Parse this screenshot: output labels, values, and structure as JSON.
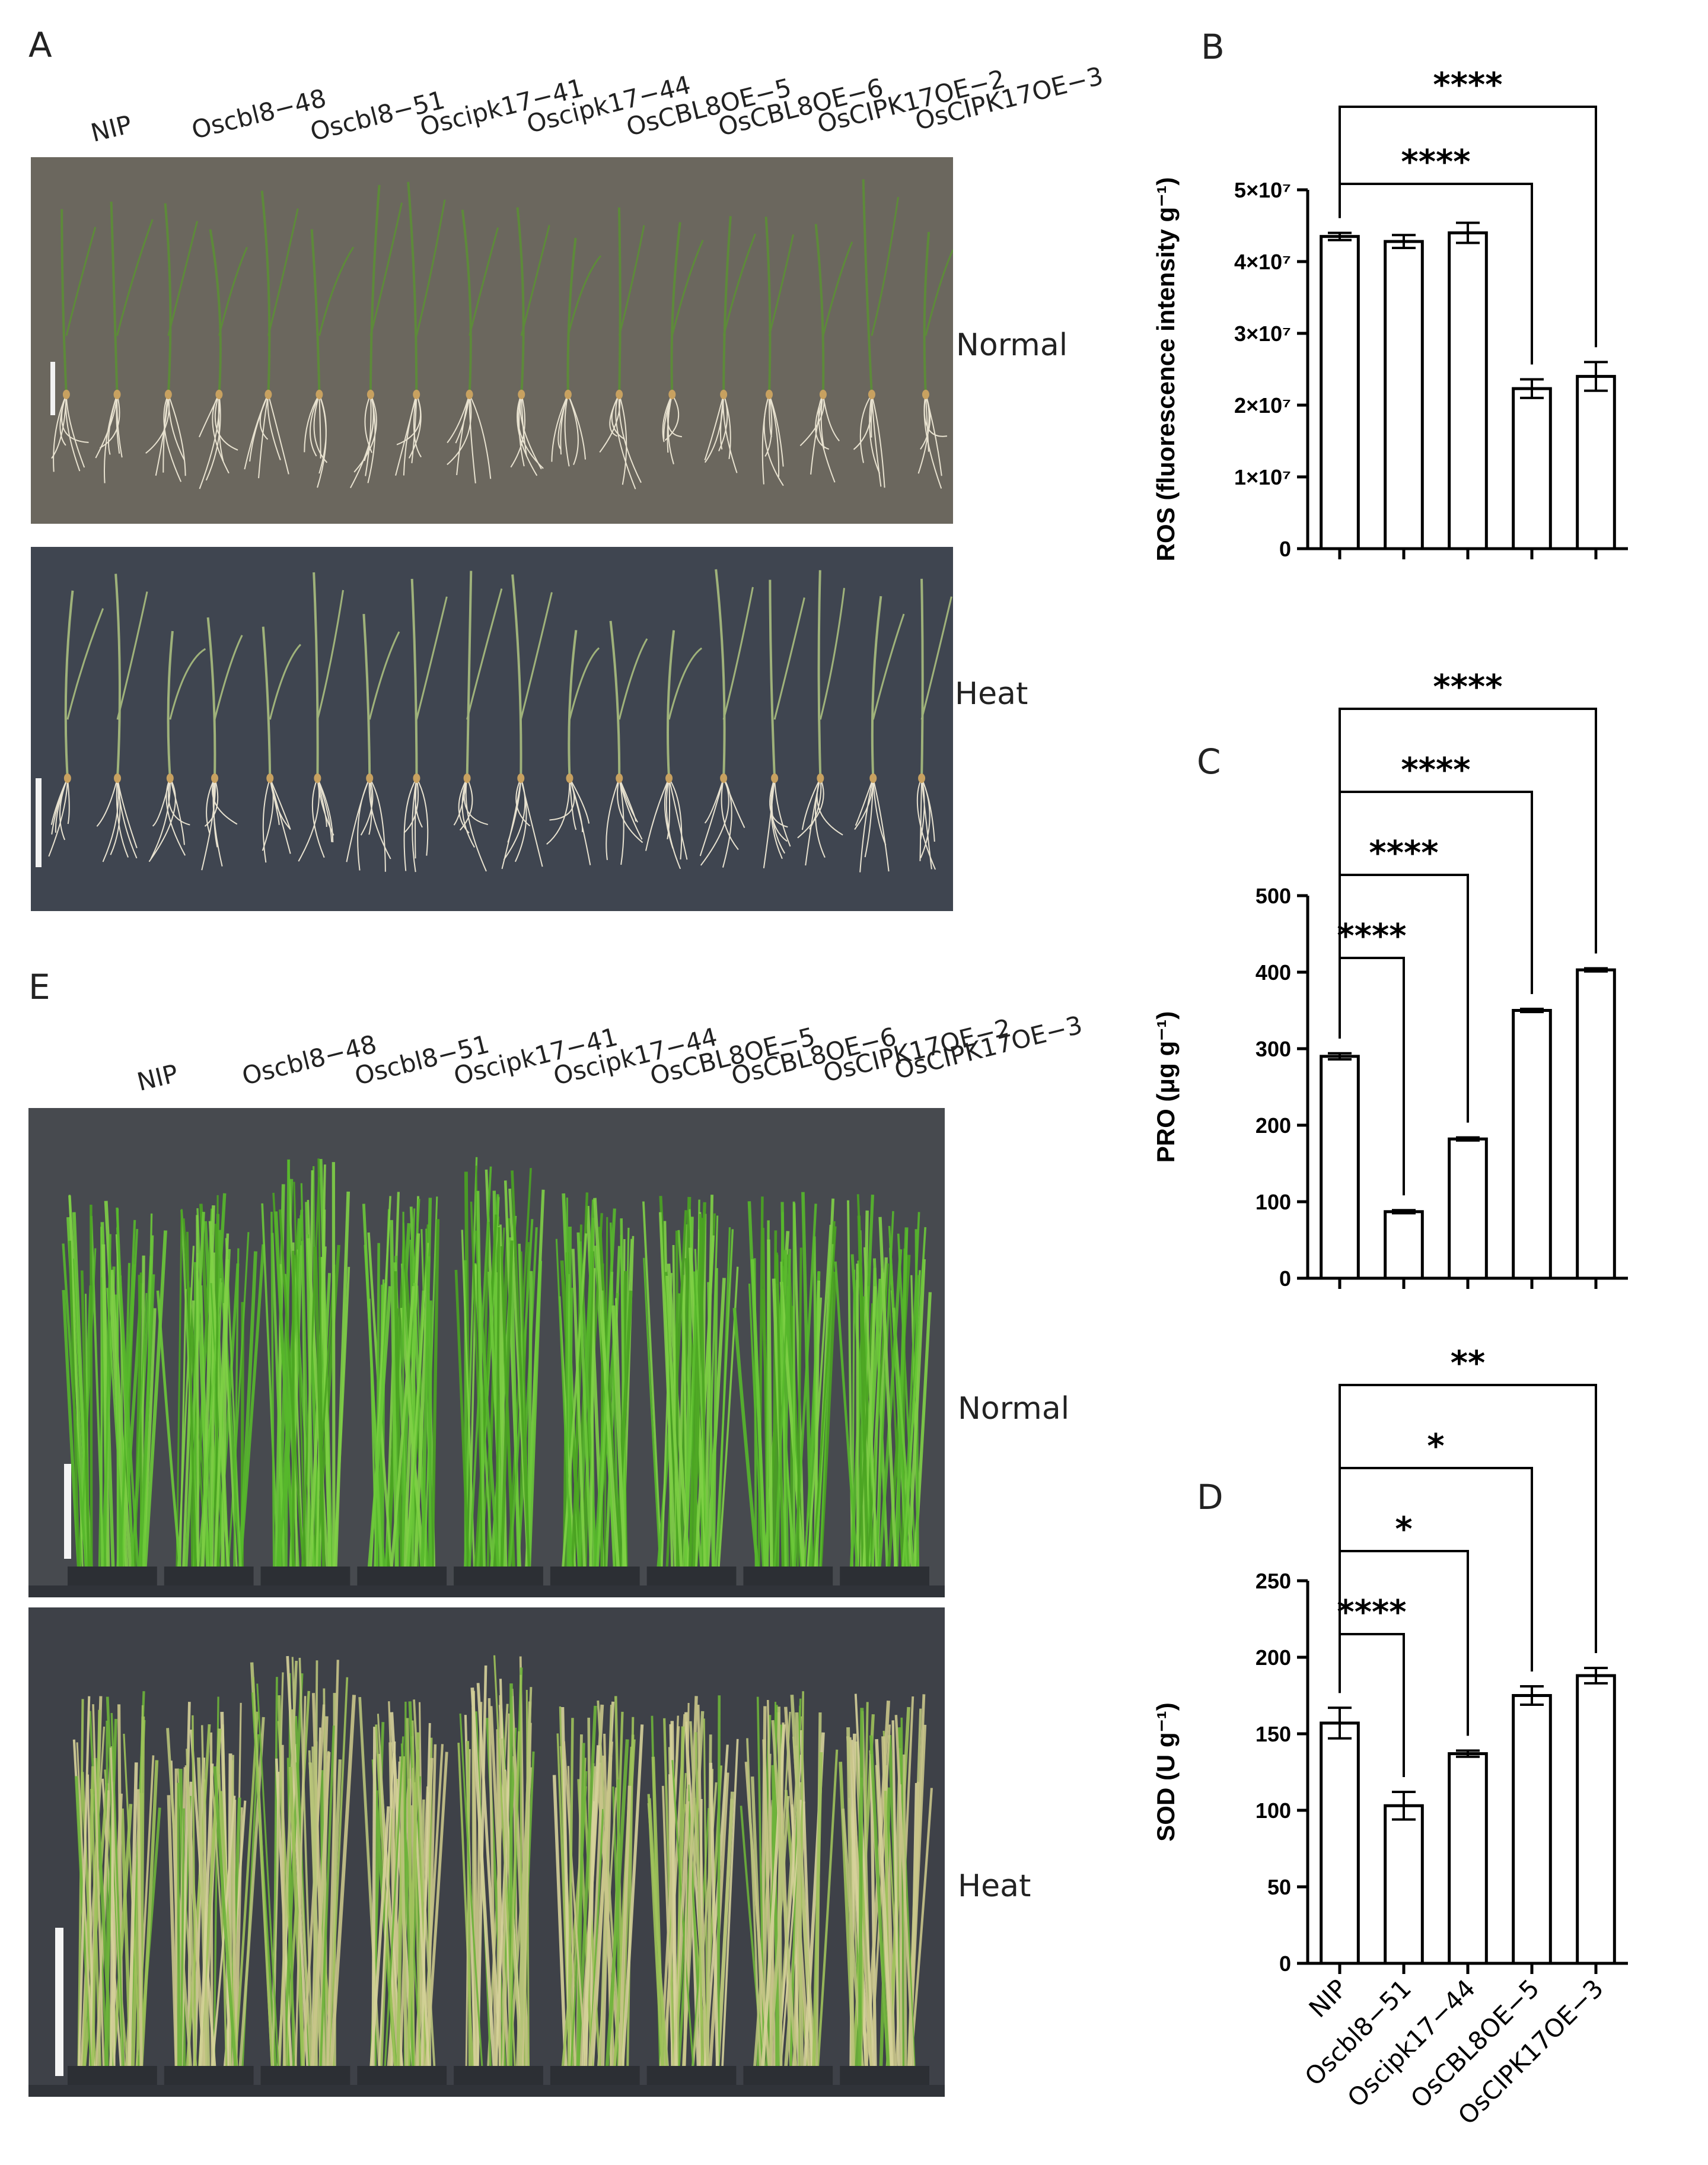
{
  "panels": {
    "A": "A",
    "B": "B",
    "C": "C",
    "D": "D",
    "E": "E"
  },
  "panel_A": {
    "genotypes": [
      "NIP",
      "Oscbl8−48",
      "Oscbl8−51",
      "Oscipk17−41",
      "Oscipk17−44",
      "OsCBL8OE−5",
      "OsCBL8OE−6",
      "OsCIPK17OE−2",
      "OsCIPK17OE−3"
    ],
    "conditions": [
      "Normal",
      "Heat"
    ]
  },
  "panel_E": {
    "genotypes": [
      "NIP",
      "Oscbl8−48",
      "Oscbl8−51",
      "Oscipk17−41",
      "Oscipk17−44",
      "OsCBL8OE−5",
      "OsCBL8OE−6",
      "OsCIPK17OE−2",
      "OsCIPK17OE−3"
    ],
    "conditions": [
      "Normal",
      "Heat"
    ]
  },
  "colors": {
    "photo_bg_normal": "#6b675e",
    "photo_bg_heat": "#3f4550",
    "seedling": "#5d8a3a",
    "rice_green": "#57b82b",
    "rice_yellow": "#c9c58a",
    "bar_fill": "#ffffff",
    "bar_stroke": "#000000"
  },
  "chart_data": [
    {
      "panel": "B",
      "type": "bar",
      "categories": [
        "NIP",
        "Oscbl8−51",
        "Oscipk17−44",
        "OsCBL8OE−5",
        "OsCIPK17OE−3"
      ],
      "values": [
        43500000,
        42800000,
        44000000,
        22300000,
        24000000
      ],
      "errors": [
        500000,
        900000,
        1400000,
        1300000,
        2000000
      ],
      "ylabel": "ROS (fluorescence intensity g⁻¹)",
      "ylim": [
        0,
        50000000
      ],
      "yticks": [
        "0",
        "1×10⁷",
        "2×10⁷",
        "3×10⁷",
        "4×10⁷",
        "5×10⁷"
      ],
      "tick_values": [
        0,
        10000000,
        20000000,
        30000000,
        40000000,
        50000000
      ],
      "significance": [
        {
          "from": 0,
          "to": 3,
          "label": "****"
        },
        {
          "from": 0,
          "to": 4,
          "label": "****"
        }
      ]
    },
    {
      "panel": "C",
      "type": "bar",
      "categories": [
        "NIP",
        "Oscbl8−51",
        "Oscipk17−44",
        "OsCBL8OE−5",
        "OsCIPK17OE−3"
      ],
      "values": [
        290,
        87,
        182,
        350,
        403
      ],
      "errors": [
        4,
        2,
        2,
        2,
        2
      ],
      "ylabel": "PRO (μg g⁻¹)",
      "ylim": [
        0,
        500
      ],
      "yticks": [
        "0",
        "100",
        "200",
        "300",
        "400",
        "500"
      ],
      "tick_values": [
        0,
        100,
        200,
        300,
        400,
        500
      ],
      "significance": [
        {
          "from": 0,
          "to": 1,
          "label": "****"
        },
        {
          "from": 0,
          "to": 2,
          "label": "****"
        },
        {
          "from": 0,
          "to": 3,
          "label": "****"
        },
        {
          "from": 0,
          "to": 4,
          "label": "****"
        }
      ]
    },
    {
      "panel": "D",
      "type": "bar",
      "categories": [
        "NIP",
        "Oscbl8−51",
        "Oscipk17−44",
        "OsCBL8OE−5",
        "OsCIPK17OE−3"
      ],
      "values": [
        157,
        103,
        137,
        175,
        188
      ],
      "errors": [
        10,
        9,
        2,
        6,
        5
      ],
      "ylabel": "SOD (U g⁻¹)",
      "ylim": [
        0,
        250
      ],
      "yticks": [
        "0",
        "50",
        "100",
        "150",
        "200",
        "250"
      ],
      "tick_values": [
        0,
        50,
        100,
        150,
        200,
        250
      ],
      "significance": [
        {
          "from": 0,
          "to": 1,
          "label": "****"
        },
        {
          "from": 0,
          "to": 2,
          "label": "*"
        },
        {
          "from": 0,
          "to": 3,
          "label": "*"
        },
        {
          "from": 0,
          "to": 4,
          "label": "**"
        }
      ]
    }
  ]
}
